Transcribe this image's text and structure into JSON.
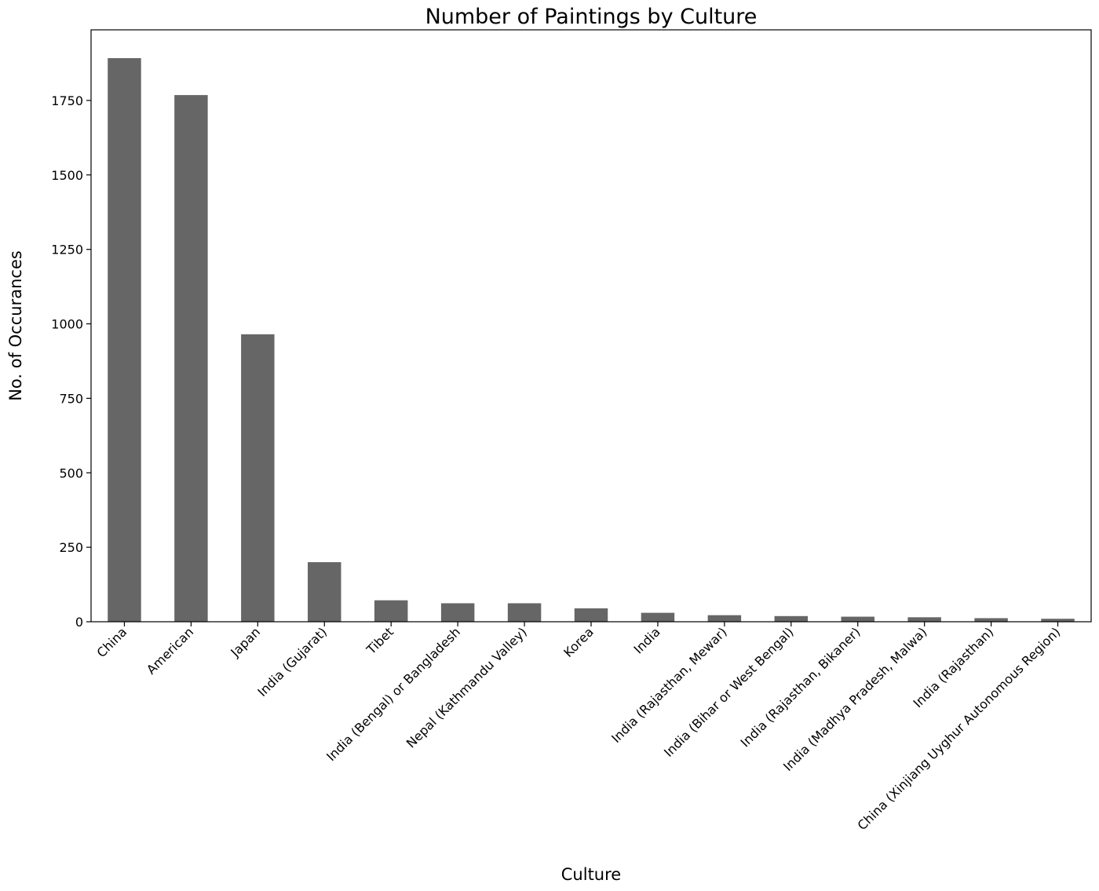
{
  "chart_data": {
    "type": "bar",
    "title": "Number of Paintings by Culture",
    "xlabel": "Culture",
    "ylabel": "No. of Occurances",
    "categories": [
      "China",
      "American",
      "Japan",
      "India (Gujarat)",
      "Tibet",
      "India (Bengal) or Bangladesh",
      "Nepal (Kathmandu Valley)",
      "Korea",
      "India",
      "India (Rajasthan, Mewar)",
      "India (Bihar or West Bengal)",
      "India (Rajasthan, Bikaner)",
      "India (Madhya Pradesh, Malwa)",
      "India (Rajasthan)",
      "China (Xinjiang Uyghur Autonomous Region)"
    ],
    "values": [
      1892,
      1768,
      965,
      200,
      72,
      62,
      62,
      45,
      30,
      22,
      19,
      17,
      15,
      12,
      10
    ],
    "ylim": [
      0,
      1987
    ],
    "yticks": [
      0,
      250,
      500,
      750,
      1000,
      1250,
      1500,
      1750
    ],
    "ytick_labels": [
      "0",
      "250",
      "500",
      "750",
      "1000",
      "1250",
      "1500",
      "1750"
    ],
    "grid": false,
    "legend": "none",
    "bar_color": "#666666"
  }
}
